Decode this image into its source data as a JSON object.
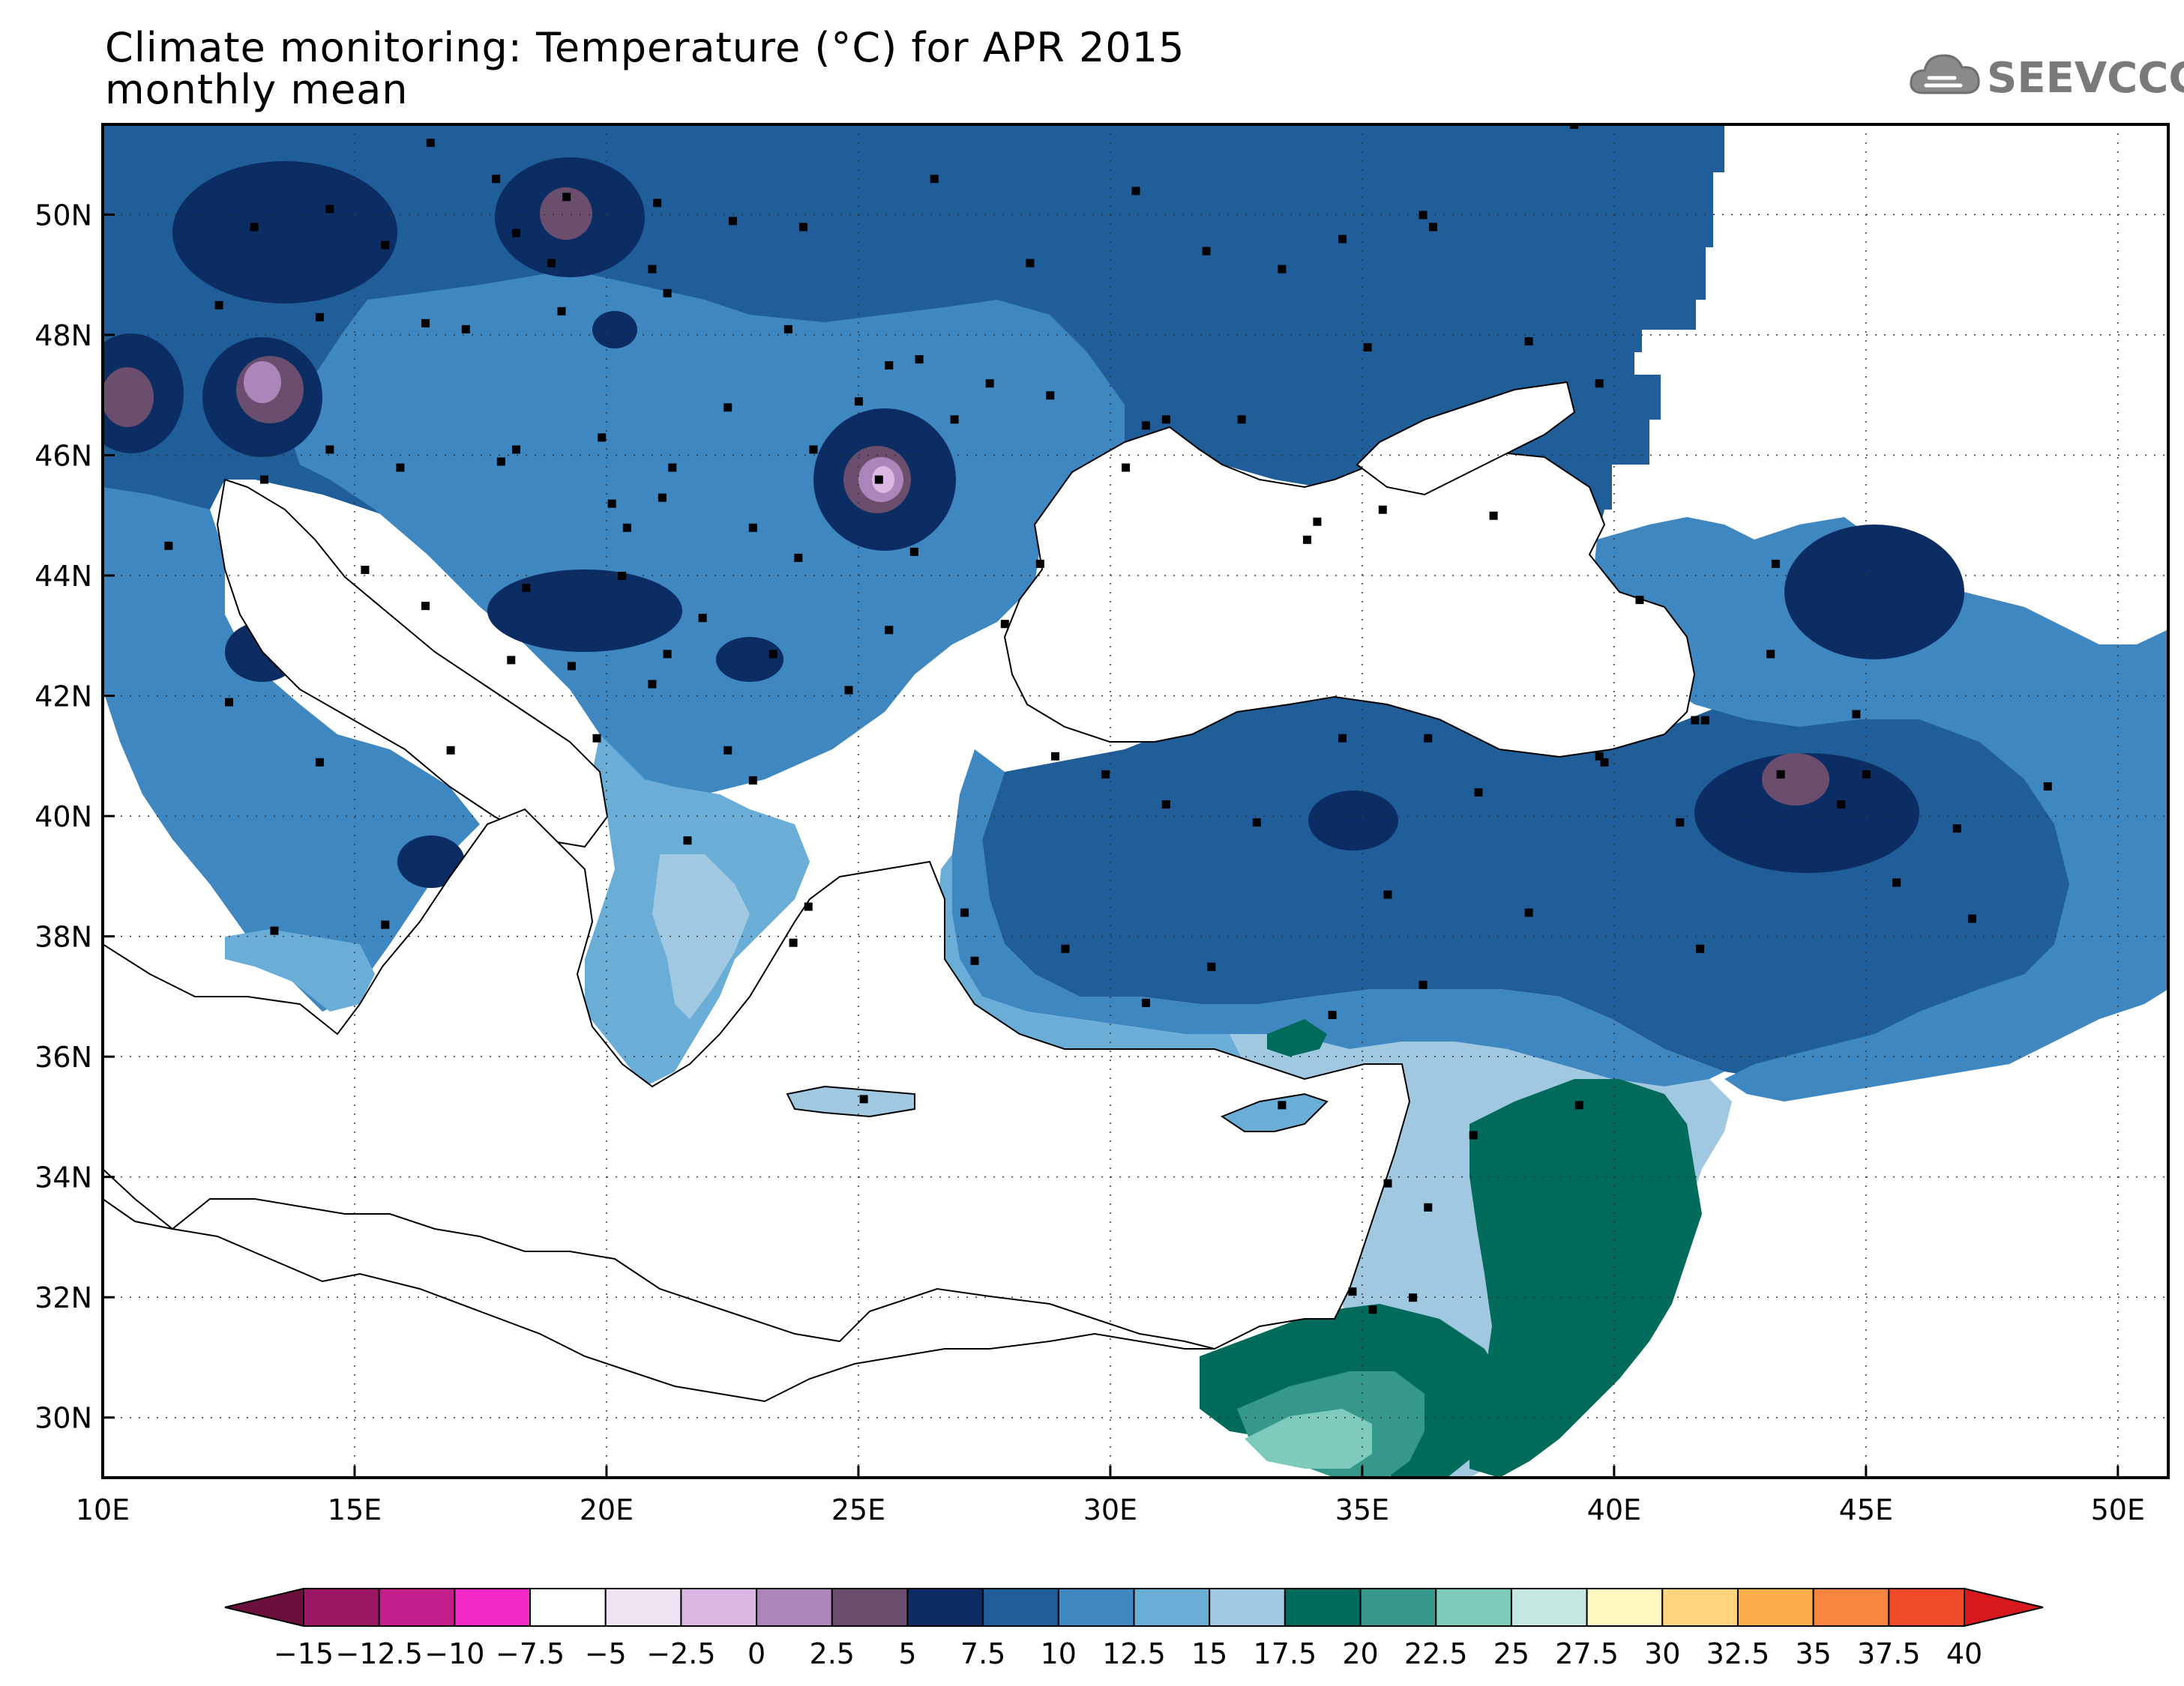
{
  "header": {
    "title_line1": "Climate monitoring: Temperature (°C) for APR 2015",
    "title_line2": "monthly mean"
  },
  "logo": {
    "text": "SEEVCCC",
    "icon": "cloud-icon"
  },
  "map": {
    "lon_range": [
      10,
      51
    ],
    "lat_range": [
      29,
      51.5
    ],
    "lon_ticks": [
      "10E",
      "15E",
      "20E",
      "25E",
      "30E",
      "35E",
      "40E",
      "45E",
      "50E"
    ],
    "lat_ticks": [
      "30N",
      "32N",
      "34N",
      "36N",
      "38N",
      "40N",
      "42N",
      "44N",
      "46N",
      "48N",
      "50N"
    ],
    "grid": "dotted"
  },
  "colorbar": {
    "labels": [
      "-15",
      "-12.5",
      "-10",
      "-7.5",
      "-5",
      "-2.5",
      "0",
      "2.5",
      "5",
      "7.5",
      "10",
      "12.5",
      "15",
      "17.5",
      "20",
      "22.5",
      "25",
      "27.5",
      "30",
      "32.5",
      "35",
      "37.5",
      "40"
    ],
    "colors": [
      "#6b0f3c",
      "#9c1763",
      "#c21e8c",
      "#f228c8",
      "#ffffff",
      "#efe2f3",
      "#dbb7e3",
      "#ac86bb",
      "#6b4e6e",
      "#0b2d63",
      "#1f5e99",
      "#3f87c0",
      "#6aaed8",
      "#a0c8e0",
      "#006b5a",
      "#36988b",
      "#7ecabd",
      "#c4e8df",
      "#fff7c0",
      "#fed57c",
      "#fdae4c",
      "#f98640",
      "#ef4b2a",
      "#d7181c"
    ]
  }
}
